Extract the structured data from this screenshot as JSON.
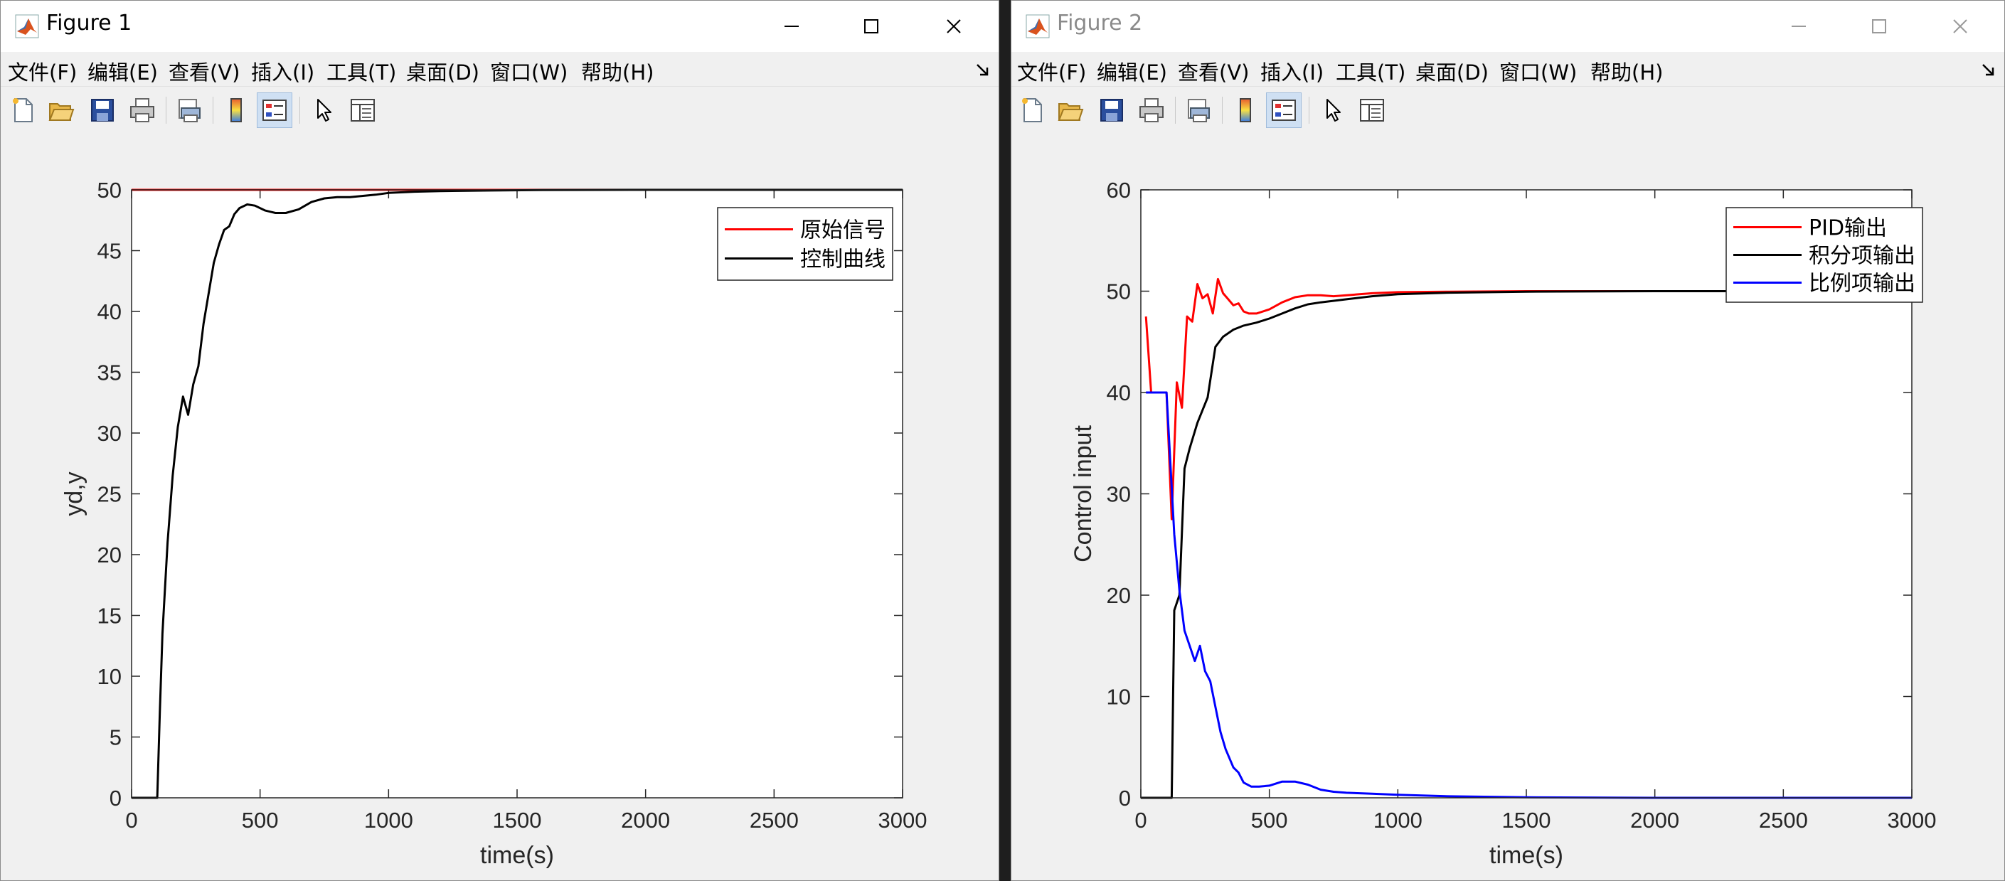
{
  "windows": [
    {
      "title": "Figure 1",
      "active": true,
      "menu": [
        "文件(F)",
        "编辑(E)",
        "查看(V)",
        "插入(I)",
        "工具(T)",
        "桌面(D)",
        "窗口(W)",
        "帮助(H)"
      ]
    },
    {
      "title": "Figure 2",
      "active": false,
      "menu": [
        "文件(F)",
        "编辑(E)",
        "查看(V)",
        "插入(I)",
        "工具(T)",
        "桌面(D)",
        "窗口(W)",
        "帮助(H)"
      ]
    }
  ],
  "toolbar_icons": [
    "new-figure-icon",
    "open-file-icon",
    "save-icon",
    "print-icon",
    "print-preview-icon",
    "colorbar-icon",
    "legend-icon",
    "edit-plot-arrow-icon",
    "property-inspector-icon"
  ],
  "colors": {
    "red": "#ff0000",
    "black": "#000000",
    "blue": "#0000ff"
  },
  "chart_data": [
    {
      "type": "line",
      "title": "",
      "xlabel": "time(s)",
      "ylabel": "yd,y",
      "xlim": [
        0,
        3000
      ],
      "ylim": [
        0,
        50
      ],
      "xticks": [
        "0",
        "500",
        "1000",
        "1500",
        "2000",
        "2500",
        "3000"
      ],
      "yticks": [
        "0",
        "5",
        "10",
        "15",
        "20",
        "25",
        "30",
        "35",
        "40",
        "45",
        "50"
      ],
      "xtick_values": [
        0,
        500,
        1000,
        1500,
        2000,
        2500,
        3000
      ],
      "ytick_values": [
        0,
        5,
        10,
        15,
        20,
        25,
        30,
        35,
        40,
        45,
        50
      ],
      "legend_position": "top-right",
      "series": [
        {
          "name": "原始信号",
          "color": "#ff0000",
          "points": [
            [
              0,
              50
            ],
            [
              3000,
              50
            ]
          ]
        },
        {
          "name": "控制曲线",
          "color": "#000000",
          "points": [
            [
              0,
              0
            ],
            [
              100,
              0
            ],
            [
              110,
              7
            ],
            [
              120,
              13.5
            ],
            [
              140,
              21
            ],
            [
              160,
              26.5
            ],
            [
              180,
              30.5
            ],
            [
              200,
              33
            ],
            [
              220,
              31.5
            ],
            [
              240,
              34
            ],
            [
              260,
              35.5
            ],
            [
              280,
              39
            ],
            [
              300,
              41.5
            ],
            [
              320,
              44
            ],
            [
              340,
              45.5
            ],
            [
              360,
              46.7
            ],
            [
              380,
              47
            ],
            [
              400,
              48
            ],
            [
              420,
              48.5
            ],
            [
              450,
              48.8
            ],
            [
              480,
              48.7
            ],
            [
              520,
              48.3
            ],
            [
              560,
              48.1
            ],
            [
              600,
              48.1
            ],
            [
              650,
              48.4
            ],
            [
              700,
              49
            ],
            [
              750,
              49.3
            ],
            [
              800,
              49.4
            ],
            [
              850,
              49.4
            ],
            [
              900,
              49.5
            ],
            [
              950,
              49.6
            ],
            [
              1000,
              49.75
            ],
            [
              1100,
              49.85
            ],
            [
              1200,
              49.9
            ],
            [
              1400,
              49.95
            ],
            [
              1600,
              49.98
            ],
            [
              2000,
              50
            ],
            [
              3000,
              50
            ]
          ]
        }
      ]
    },
    {
      "type": "line",
      "title": "",
      "xlabel": "time(s)",
      "ylabel": "Control input",
      "xlim": [
        0,
        3000
      ],
      "ylim": [
        0,
        60
      ],
      "xticks": [
        "0",
        "500",
        "1000",
        "1500",
        "2000",
        "2500",
        "3000"
      ],
      "yticks": [
        "0",
        "10",
        "20",
        "30",
        "40",
        "50",
        "60"
      ],
      "xtick_values": [
        0,
        500,
        1000,
        1500,
        2000,
        2500,
        3000
      ],
      "ytick_values": [
        0,
        10,
        20,
        30,
        40,
        50,
        60
      ],
      "legend_position": "top-right",
      "series": [
        {
          "name": "PID输出",
          "color": "#ff0000",
          "points": [
            [
              20,
              47.5
            ],
            [
              40,
              40
            ],
            [
              100,
              40
            ],
            [
              120,
              27.5
            ],
            [
              140,
              41
            ],
            [
              160,
              38.5
            ],
            [
              180,
              47.5
            ],
            [
              200,
              47
            ],
            [
              220,
              50.7
            ],
            [
              240,
              49.3
            ],
            [
              260,
              49.7
            ],
            [
              280,
              47.8
            ],
            [
              300,
              51.2
            ],
            [
              320,
              49.8
            ],
            [
              340,
              49.2
            ],
            [
              360,
              48.6
            ],
            [
              380,
              48.8
            ],
            [
              400,
              48
            ],
            [
              420,
              47.8
            ],
            [
              450,
              47.8
            ],
            [
              500,
              48.2
            ],
            [
              550,
              48.9
            ],
            [
              600,
              49.4
            ],
            [
              650,
              49.6
            ],
            [
              700,
              49.6
            ],
            [
              750,
              49.5
            ],
            [
              800,
              49.6
            ],
            [
              900,
              49.8
            ],
            [
              1000,
              49.9
            ],
            [
              1200,
              49.95
            ],
            [
              1500,
              50
            ],
            [
              3000,
              50
            ]
          ]
        },
        {
          "name": "积分项输出",
          "color": "#000000",
          "points": [
            [
              0,
              0
            ],
            [
              100,
              0
            ],
            [
              120,
              0
            ],
            [
              130,
              18.5
            ],
            [
              150,
              20
            ],
            [
              170,
              32.5
            ],
            [
              190,
              34.5
            ],
            [
              220,
              37
            ],
            [
              260,
              39.5
            ],
            [
              290,
              44.5
            ],
            [
              320,
              45.5
            ],
            [
              360,
              46.2
            ],
            [
              400,
              46.6
            ],
            [
              450,
              46.9
            ],
            [
              500,
              47.3
            ],
            [
              550,
              47.8
            ],
            [
              600,
              48.3
            ],
            [
              650,
              48.7
            ],
            [
              700,
              48.9
            ],
            [
              800,
              49.2
            ],
            [
              900,
              49.5
            ],
            [
              1000,
              49.7
            ],
            [
              1200,
              49.85
            ],
            [
              1500,
              49.95
            ],
            [
              2000,
              50
            ],
            [
              3000,
              50
            ]
          ]
        },
        {
          "name": "比例项输出",
          "color": "#0000ff",
          "points": [
            [
              20,
              40
            ],
            [
              40,
              40
            ],
            [
              100,
              40
            ],
            [
              130,
              26
            ],
            [
              150,
              20.5
            ],
            [
              170,
              16.5
            ],
            [
              190,
              15
            ],
            [
              210,
              13.5
            ],
            [
              230,
              15
            ],
            [
              250,
              12.5
            ],
            [
              270,
              11.5
            ],
            [
              290,
              9
            ],
            [
              310,
              6.5
            ],
            [
              330,
              4.8
            ],
            [
              360,
              3
            ],
            [
              380,
              2.5
            ],
            [
              400,
              1.5
            ],
            [
              430,
              1.1
            ],
            [
              460,
              1.1
            ],
            [
              500,
              1.2
            ],
            [
              550,
              1.6
            ],
            [
              600,
              1.6
            ],
            [
              650,
              1.3
            ],
            [
              700,
              0.8
            ],
            [
              750,
              0.6
            ],
            [
              800,
              0.5
            ],
            [
              900,
              0.4
            ],
            [
              1000,
              0.3
            ],
            [
              1200,
              0.15
            ],
            [
              1500,
              0.05
            ],
            [
              2000,
              0
            ],
            [
              3000,
              0
            ]
          ]
        }
      ]
    }
  ]
}
